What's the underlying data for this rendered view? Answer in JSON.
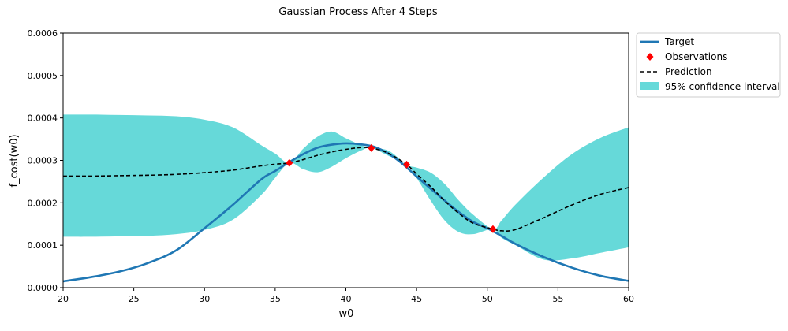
{
  "chart_data": {
    "type": "line",
    "title": "Gaussian Process After 4 Steps",
    "xlabel": "w0",
    "ylabel": "f_cost(w0)",
    "xlim": [
      20,
      60
    ],
    "ylim": [
      0,
      0.0006
    ],
    "xticks": [
      20,
      25,
      30,
      35,
      40,
      45,
      50,
      55,
      60
    ],
    "xtick_labels": [
      "20",
      "25",
      "30",
      "35",
      "40",
      "45",
      "50",
      "55",
      "60"
    ],
    "yticks": [
      0,
      0.0001,
      0.0002,
      0.0003,
      0.0004,
      0.0005,
      0.0006
    ],
    "ytick_labels": [
      "0.0000",
      "0.0001",
      "0.0002",
      "0.0003",
      "0.0004",
      "0.0005",
      "0.0006"
    ],
    "grid": false,
    "legend_position": "outside-top-right",
    "series": [
      {
        "name": "Target",
        "kind": "line",
        "color": "#1f77b4",
        "x": [
          20,
          22,
          24,
          26,
          28,
          30,
          32,
          34,
          35,
          36,
          37,
          38,
          39,
          40,
          41,
          42,
          43,
          44,
          45,
          46,
          47,
          48,
          49,
          50,
          51,
          52,
          54,
          56,
          58,
          60
        ],
        "y": [
          1.5e-05,
          2.5e-05,
          3.8e-05,
          5.8e-05,
          8.8e-05,
          0.00014,
          0.000195,
          0.000255,
          0.000275,
          0.000296,
          0.000315,
          0.00033,
          0.000337,
          0.00034,
          0.000338,
          0.000332,
          0.000316,
          0.000292,
          0.000262,
          0.000233,
          0.000205,
          0.000178,
          0.000155,
          0.00014,
          0.000122,
          0.000103,
          7.2e-05,
          4.7e-05,
          2.8e-05,
          1.6e-05
        ]
      },
      {
        "name": "Observations",
        "kind": "scatter",
        "color": "#ff0000",
        "x": [
          36.0,
          41.8,
          44.3,
          50.4
        ],
        "y": [
          0.000294,
          0.000329,
          0.00029,
          0.000138
        ]
      },
      {
        "name": "Prediction",
        "kind": "dashed-line",
        "color": "#000000",
        "x": [
          20,
          22,
          24,
          26,
          28,
          30,
          32,
          34,
          35,
          36,
          37,
          38,
          39,
          40,
          41,
          41.8,
          43,
          44.3,
          45,
          46,
          47,
          48,
          49,
          50.4,
          51,
          52,
          54,
          56,
          58,
          60
        ],
        "y": [
          0.000263,
          0.000263,
          0.000264,
          0.000265,
          0.000267,
          0.000271,
          0.000277,
          0.000287,
          0.000291,
          0.000294,
          0.000302,
          0.000312,
          0.00032,
          0.000326,
          0.00033,
          0.000329,
          0.000317,
          0.00029,
          0.000268,
          0.000238,
          0.000204,
          0.000175,
          0.000152,
          0.000138,
          0.000134,
          0.000137,
          0.000165,
          0.000195,
          0.00022,
          0.000236
        ]
      },
      {
        "name": "95% confidence interval",
        "kind": "band",
        "color": "#66d9d9",
        "x": [
          20,
          22,
          24,
          26,
          28,
          30,
          32,
          34,
          35,
          36,
          37,
          38,
          39,
          40,
          41,
          41.8,
          43,
          44.3,
          45,
          46,
          47,
          48,
          49,
          50.4,
          51,
          52,
          54,
          56,
          58,
          60
        ],
        "lower": [
          0.00012,
          0.00012,
          0.000121,
          0.000122,
          0.000126,
          0.000136,
          0.00016,
          0.000218,
          0.000259,
          0.000294,
          0.000279,
          0.000272,
          0.000285,
          0.000305,
          0.000322,
          0.000329,
          0.000311,
          0.00029,
          0.000259,
          0.000205,
          0.000158,
          0.000131,
          0.000126,
          0.000138,
          0.000118,
          0.0001,
          6.6e-05,
          6.9e-05,
          8.2e-05,
          9.5e-05
        ],
        "upper": [
          0.000408,
          0.000408,
          0.000407,
          0.000406,
          0.000404,
          0.000396,
          0.000378,
          0.000336,
          0.000316,
          0.000294,
          0.000328,
          0.000356,
          0.000368,
          0.000352,
          0.000337,
          0.000329,
          0.000323,
          0.00029,
          0.000283,
          0.000271,
          0.000244,
          0.000205,
          0.000172,
          0.000138,
          0.000158,
          0.000196,
          0.00026,
          0.000315,
          0.000353,
          0.000378
        ]
      }
    ],
    "legend": [
      "Target",
      "Observations",
      "Prediction",
      "95% confidence interval"
    ]
  }
}
